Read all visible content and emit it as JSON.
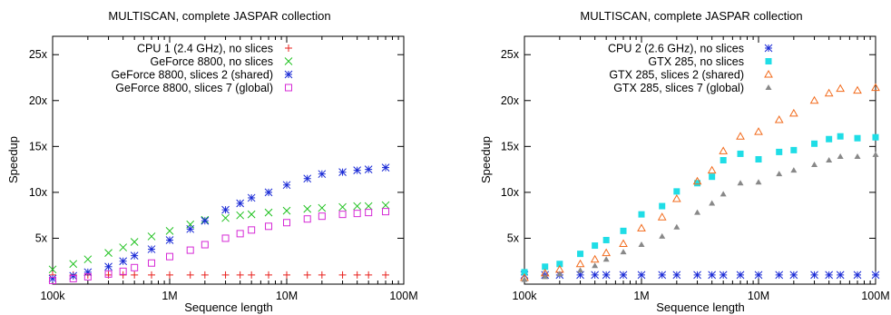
{
  "chart_data": [
    {
      "type": "scatter",
      "title": "MULTISCAN, complete JASPAR collection",
      "xlabel": "Sequence length",
      "ylabel": "Speedup",
      "xscale": "log",
      "xlim": [
        100000,
        100000000
      ],
      "ylim": [
        0,
        27
      ],
      "xticks": [
        "100k",
        "1M",
        "10M",
        "100M"
      ],
      "yticks": [
        "5x",
        "10x",
        "15x",
        "20x",
        "25x"
      ],
      "legend_position": "top-right",
      "x": [
        100000,
        150000,
        200000,
        300000,
        400000,
        500000,
        700000,
        1000000,
        1500000,
        2000000,
        3000000,
        4000000,
        5000000,
        7000000,
        10000000,
        15000000,
        20000000,
        30000000,
        40000000,
        50000000,
        70000000
      ],
      "series": [
        {
          "name": "CPU 1 (2.4 GHz), no slices",
          "marker": "plus",
          "color": "#e8201c",
          "values": [
            1,
            1,
            1,
            1,
            1,
            1,
            1,
            1,
            1,
            1,
            1,
            1,
            1,
            1,
            1,
            1,
            1,
            1,
            1,
            1,
            1
          ]
        },
        {
          "name": "GeForce 8800, no slices",
          "marker": "cross",
          "color": "#1ec11e",
          "values": [
            1.6,
            2.2,
            2.7,
            3.4,
            4.0,
            4.6,
            5.2,
            5.8,
            6.5,
            7.0,
            7.2,
            7.5,
            7.6,
            7.8,
            8.0,
            8.2,
            8.3,
            8.4,
            8.5,
            8.5,
            8.6
          ]
        },
        {
          "name": "GeForce 8800, slices 2 (shared)",
          "marker": "star",
          "color": "#1a2ad6",
          "values": [
            0.6,
            0.9,
            1.3,
            1.9,
            2.5,
            3.1,
            3.8,
            4.8,
            6.0,
            6.9,
            8.1,
            8.8,
            9.4,
            10.0,
            10.8,
            11.5,
            12.0,
            12.2,
            12.4,
            12.5,
            12.7
          ]
        },
        {
          "name": "GeForce 8800, slices 7 (global)",
          "marker": "square",
          "color": "#d629d6",
          "values": [
            0.4,
            0.6,
            0.8,
            1.1,
            1.4,
            1.8,
            2.3,
            3.0,
            3.7,
            4.3,
            5.0,
            5.5,
            5.9,
            6.3,
            6.7,
            7.1,
            7.4,
            7.6,
            7.7,
            7.8,
            7.9
          ]
        }
      ]
    },
    {
      "type": "scatter",
      "title": "MULTISCAN, complete JASPAR collection",
      "xlabel": "Sequence length",
      "ylabel": "Speedup",
      "xscale": "log",
      "xlim": [
        100000,
        100000000
      ],
      "ylim": [
        0,
        27
      ],
      "xticks": [
        "100k",
        "1M",
        "10M",
        "100M"
      ],
      "yticks": [
        "5x",
        "10x",
        "15x",
        "20x",
        "25x"
      ],
      "legend_position": "top-right",
      "x": [
        100000,
        150000,
        200000,
        300000,
        400000,
        500000,
        700000,
        1000000,
        1500000,
        2000000,
        3000000,
        4000000,
        5000000,
        7000000,
        10000000,
        15000000,
        20000000,
        30000000,
        40000000,
        50000000,
        70000000,
        100000000
      ],
      "series": [
        {
          "name": "CPU 2 (2.6 GHz), no slices",
          "marker": "star",
          "color": "#1a2ad6",
          "values": [
            1,
            1,
            1,
            1,
            1,
            1,
            1,
            1,
            1,
            1,
            1,
            1,
            1,
            1,
            1,
            1,
            1,
            1,
            1,
            1,
            1,
            1
          ]
        },
        {
          "name": "GTX 285, no slices",
          "marker": "filled-square",
          "color": "#1fdde6",
          "values": [
            1.3,
            1.9,
            2.2,
            3.3,
            4.2,
            4.8,
            5.8,
            7.6,
            8.5,
            10.1,
            11.0,
            11.7,
            13.5,
            14.2,
            13.6,
            14.4,
            14.6,
            15.3,
            15.8,
            16.1,
            15.9,
            16.0
          ]
        },
        {
          "name": "GTX 285, slices 2 (shared)",
          "marker": "triangle",
          "color": "#f26a1b",
          "values": [
            0.7,
            1.2,
            1.6,
            2.2,
            2.7,
            3.4,
            4.4,
            6.1,
            7.3,
            9.3,
            11.2,
            12.4,
            14.5,
            16.1,
            16.6,
            17.9,
            18.6,
            20.0,
            20.8,
            21.3,
            21.1,
            21.4
          ]
        },
        {
          "name": "GTX 285, slices 7 (global)",
          "marker": "filled-triangle",
          "color": "#888888",
          "values": [
            0.5,
            0.8,
            1.1,
            1.5,
            2.0,
            2.7,
            3.5,
            4.3,
            5.2,
            6.2,
            7.8,
            8.8,
            9.8,
            11.0,
            11.1,
            12.0,
            12.4,
            13.0,
            13.5,
            13.9,
            13.9,
            14.1
          ]
        }
      ]
    }
  ]
}
